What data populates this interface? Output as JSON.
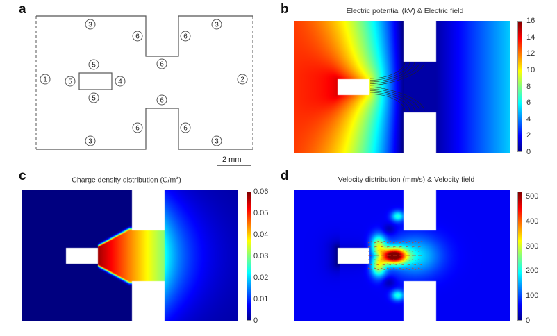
{
  "panel_a": {
    "label": "a",
    "boundary_labels": [
      "3",
      "6",
      "6",
      "3",
      "6",
      "5",
      "1",
      "5",
      "4",
      "2",
      "5",
      "6",
      "6",
      "6",
      "3",
      "3"
    ],
    "scale_bar": "2 mm"
  },
  "panel_b": {
    "label": "b",
    "title": "Electric potential (kV) & Electric field",
    "colorbar": {
      "min": 0,
      "max": 16,
      "ticks": [
        "0",
        "2",
        "4",
        "6",
        "8",
        "10",
        "12",
        "14",
        "16"
      ]
    }
  },
  "panel_c": {
    "label": "c",
    "title_main": "Charge density distribution (C/m",
    "title_sup": "3",
    "title_end": ")",
    "colorbar": {
      "min": 0,
      "max": 0.06,
      "ticks": [
        "0",
        "0.01",
        "0.02",
        "0.03",
        "0.04",
        "0.05",
        "0.06"
      ]
    }
  },
  "panel_d": {
    "label": "d",
    "title": "Velocity distribution (mm/s) & Velocity field",
    "colorbar": {
      "min": 0,
      "max": 520,
      "ticks": [
        "0",
        "100",
        "200",
        "300",
        "400",
        "500"
      ]
    }
  },
  "colors": {
    "outline": "#555555",
    "field_lines": "#222222",
    "arrows": "#d04020"
  }
}
